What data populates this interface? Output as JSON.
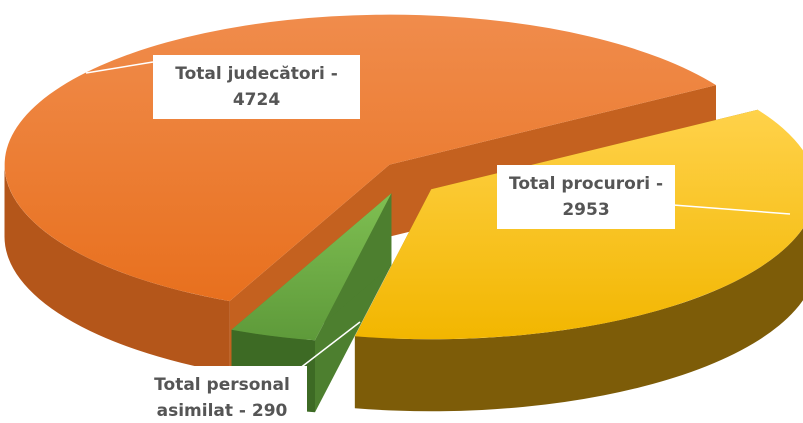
{
  "chart_data": {
    "type": "pie",
    "values": [
      2953,
      290,
      4724
    ],
    "value_labels": [
      "Total procurori - 2953",
      "Total personal asimilat - 290",
      "Total judecători - 4724"
    ],
    "colors": [
      "#FFC000",
      "#70AD47",
      "#ED7D31"
    ]
  }
}
